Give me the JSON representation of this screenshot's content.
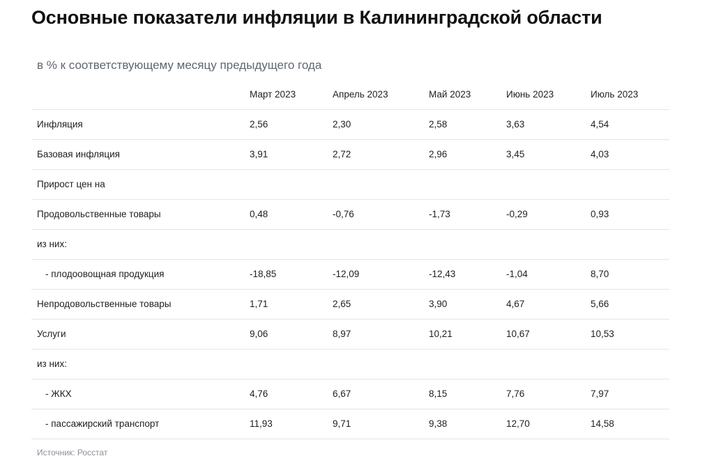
{
  "title": "Основные показатели инфляции в Калининградской области",
  "subtitle": "в % к соответствующему месяцу предыдущего года",
  "columns": [
    "",
    "Март 2023",
    "Апрель 2023",
    "Май 2023",
    "Июнь 2023",
    "Июль 2023"
  ],
  "rows": [
    {
      "label": "Инфляция",
      "values": [
        "2,56",
        "2,30",
        "2,58",
        "3,63",
        "4,54"
      ]
    },
    {
      "label": "Базовая инфляция",
      "values": [
        "3,91",
        "2,72",
        "2,96",
        "3,45",
        "4,03"
      ]
    },
    {
      "label": "Прирост цен на",
      "values": [
        "",
        "",
        "",
        "",
        ""
      ]
    },
    {
      "label": "Продовольственные товары",
      "values": [
        "0,48",
        "-0,76",
        "-1,73",
        "-0,29",
        "0,93"
      ]
    },
    {
      "label": "из них:",
      "values": [
        "",
        "",
        "",
        "",
        ""
      ]
    },
    {
      "label": "- плодоовощная продукция",
      "values": [
        "-18,85",
        "-12,09",
        "-12,43",
        "-1,04",
        "8,70"
      ]
    },
    {
      "label": "Непродовольственные товары",
      "values": [
        "1,71",
        "2,65",
        "3,90",
        "4,67",
        "5,66"
      ]
    },
    {
      "label": "Услуги",
      "values": [
        "9,06",
        "8,97",
        "10,21",
        "10,67",
        "10,53"
      ]
    },
    {
      "label": "из них:",
      "values": [
        "",
        "",
        "",
        "",
        ""
      ]
    },
    {
      "label": "- ЖКХ",
      "values": [
        "4,76",
        "6,67",
        "8,15",
        "7,76",
        "7,97"
      ]
    },
    {
      "label": "- пассажирский транспорт",
      "values": [
        "11,93",
        "9,71",
        "9,38",
        "12,70",
        "14,58"
      ]
    }
  ],
  "source": "Источник: Росстат"
}
